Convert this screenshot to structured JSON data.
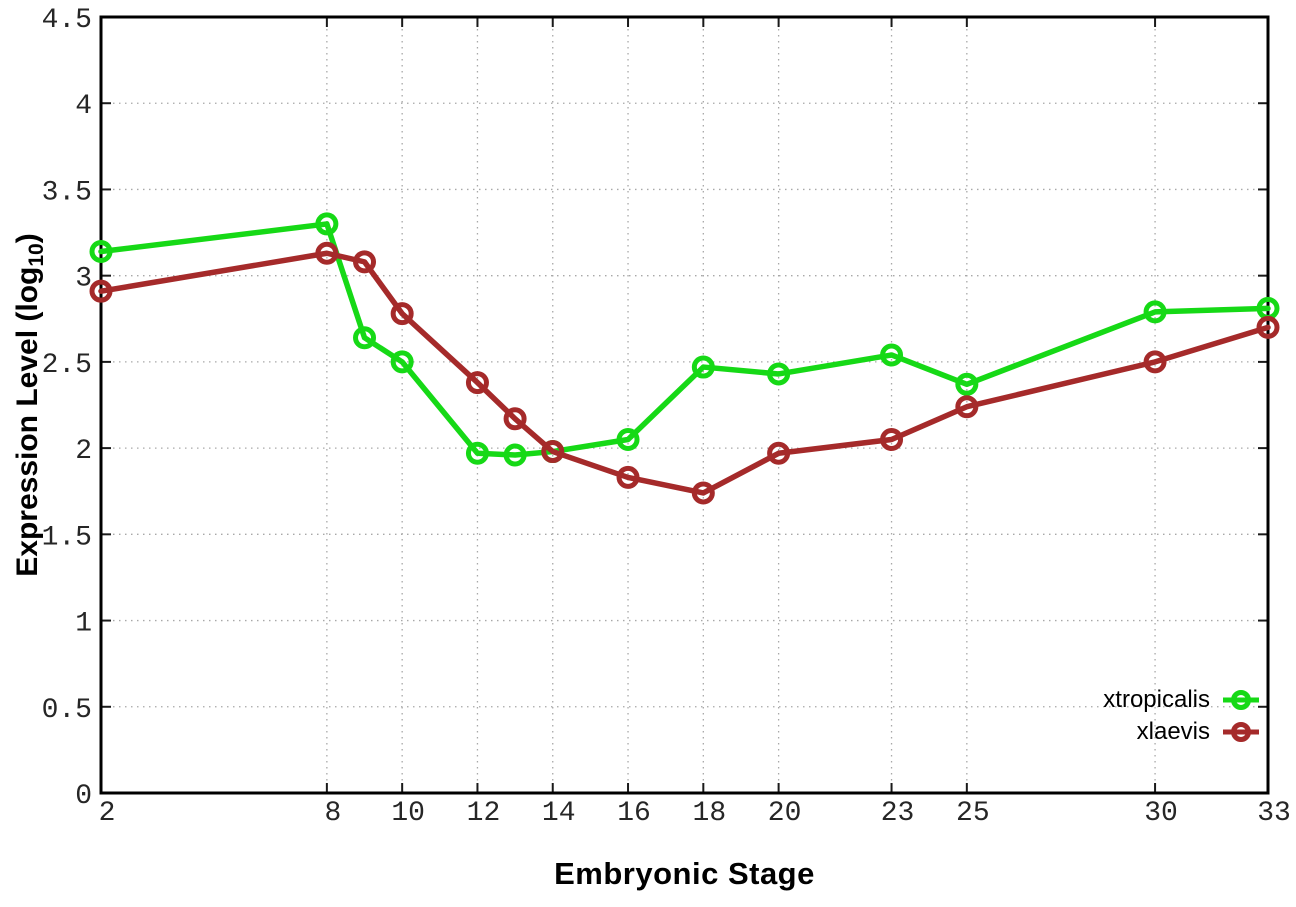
{
  "chart_data": {
    "type": "line",
    "x": [
      2,
      8,
      9,
      10,
      12,
      13,
      14,
      16,
      18,
      20,
      23,
      25,
      30,
      33
    ],
    "series": [
      {
        "name": "xtropicalis",
        "color": "#16d916",
        "values": [
          3.14,
          3.3,
          2.64,
          2.5,
          1.97,
          1.96,
          1.98,
          2.05,
          2.47,
          2.43,
          2.54,
          2.37,
          2.79,
          2.81
        ]
      },
      {
        "name": "xlaevis",
        "color": "#a52a2a",
        "values": [
          2.91,
          3.13,
          3.08,
          2.78,
          2.38,
          2.17,
          1.98,
          1.83,
          1.74,
          1.97,
          2.05,
          2.24,
          2.5,
          2.7
        ]
      }
    ],
    "title": "",
    "xlabel": "Embryonic Stage",
    "ylabel": "Expression Level (log10)",
    "ylabel_parts": {
      "prefix": "Expression Level (log",
      "subscript": "10",
      "suffix": ")"
    },
    "xlim": [
      2,
      33
    ],
    "ylim": [
      0,
      4.5
    ],
    "xticks": [
      2,
      8,
      10,
      12,
      14,
      16,
      18,
      20,
      23,
      25,
      30,
      33
    ],
    "xtick_labels": [
      "2",
      "8",
      "10",
      "12",
      "14",
      "16",
      "18",
      "20",
      "23",
      "25",
      "30",
      "33"
    ],
    "yticks": [
      0,
      0.5,
      1,
      1.5,
      2,
      2.5,
      3,
      3.5,
      4,
      4.5
    ],
    "ytick_labels": [
      "0",
      "0.5",
      "1",
      "1.5",
      "2",
      "2.5",
      "3",
      "3.5",
      "4",
      "4.5"
    ],
    "grid": true,
    "grid_style": "dotted",
    "legend_position": "bottom-right",
    "marker": "open-circle",
    "colors": {
      "background": "#ffffff",
      "axis_border": "#000000",
      "grid": "#a8a8a8",
      "tick_text": "#262626"
    }
  }
}
